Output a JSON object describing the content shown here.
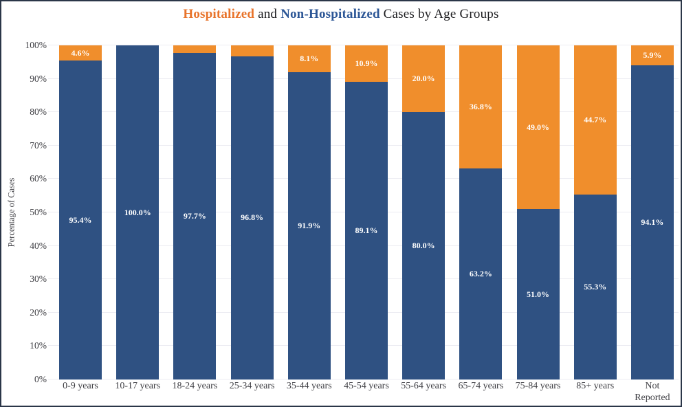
{
  "title": {
    "hospitalized": "Hospitalized",
    "and": " and ",
    "non_hospitalized": "Non-Hospitalized",
    "rest": " Cases by Age Groups"
  },
  "colors": {
    "hospitalized_bar": "#F08E2C",
    "non_hospitalized_bar": "#2F5182",
    "title_hospitalized": "#E8732A",
    "title_non_hospitalized": "#2C5696",
    "gridline": "#ECECF2",
    "frame_border": "#2B3648",
    "axis_text": "#3D3D42",
    "bar_label_text": "#FFFFFF"
  },
  "chart_data": {
    "type": "bar",
    "stacked": true,
    "title": "Hospitalized and Non-Hospitalized Cases by Age Groups",
    "ylabel": "Percentage of Cases",
    "xlabel": "",
    "ylim": [
      0,
      100
    ],
    "yticks": [
      "0%",
      "10%",
      "20%",
      "30%",
      "40%",
      "50%",
      "60%",
      "70%",
      "80%",
      "90%",
      "100%"
    ],
    "grid": "horizontal",
    "legend_position": "none (series identified by colored words in title)",
    "categories": [
      "0-9 years",
      "10-17 years",
      "18-24 years",
      "25-34 years",
      "35-44 years",
      "45-54 years",
      "55-64 years",
      "65-74 years",
      "75-84 years",
      "85+ years",
      "Not Reported"
    ],
    "xtick_display": [
      "0-9 years",
      "10-17 years",
      "18-24 years",
      "25-34 years",
      "35-44 years",
      "45-54 years",
      "55-64 years",
      "65-74 years",
      "75-84 years",
      "85+ years",
      "Not\nReported"
    ],
    "series": [
      {
        "name": "Non-Hospitalized",
        "color": "#2F5182",
        "values": [
          95.4,
          100.0,
          97.7,
          96.8,
          91.9,
          89.1,
          80.0,
          63.2,
          51.0,
          55.3,
          94.1
        ],
        "labels": [
          "95.4%",
          "100.0%",
          "97.7%",
          "96.8%",
          "91.9%",
          "89.1%",
          "80.0%",
          "63.2%",
          "51.0%",
          "55.3%",
          "94.1%"
        ]
      },
      {
        "name": "Hospitalized",
        "color": "#F08E2C",
        "values": [
          4.6,
          0.0,
          2.3,
          3.2,
          8.1,
          10.9,
          20.0,
          36.8,
          49.0,
          44.7,
          5.9
        ],
        "labels": [
          "4.6%",
          "",
          "",
          "",
          "8.1%",
          "10.9%",
          "20.0%",
          "36.8%",
          "49.0%",
          "44.7%",
          "5.9%"
        ]
      }
    ]
  }
}
